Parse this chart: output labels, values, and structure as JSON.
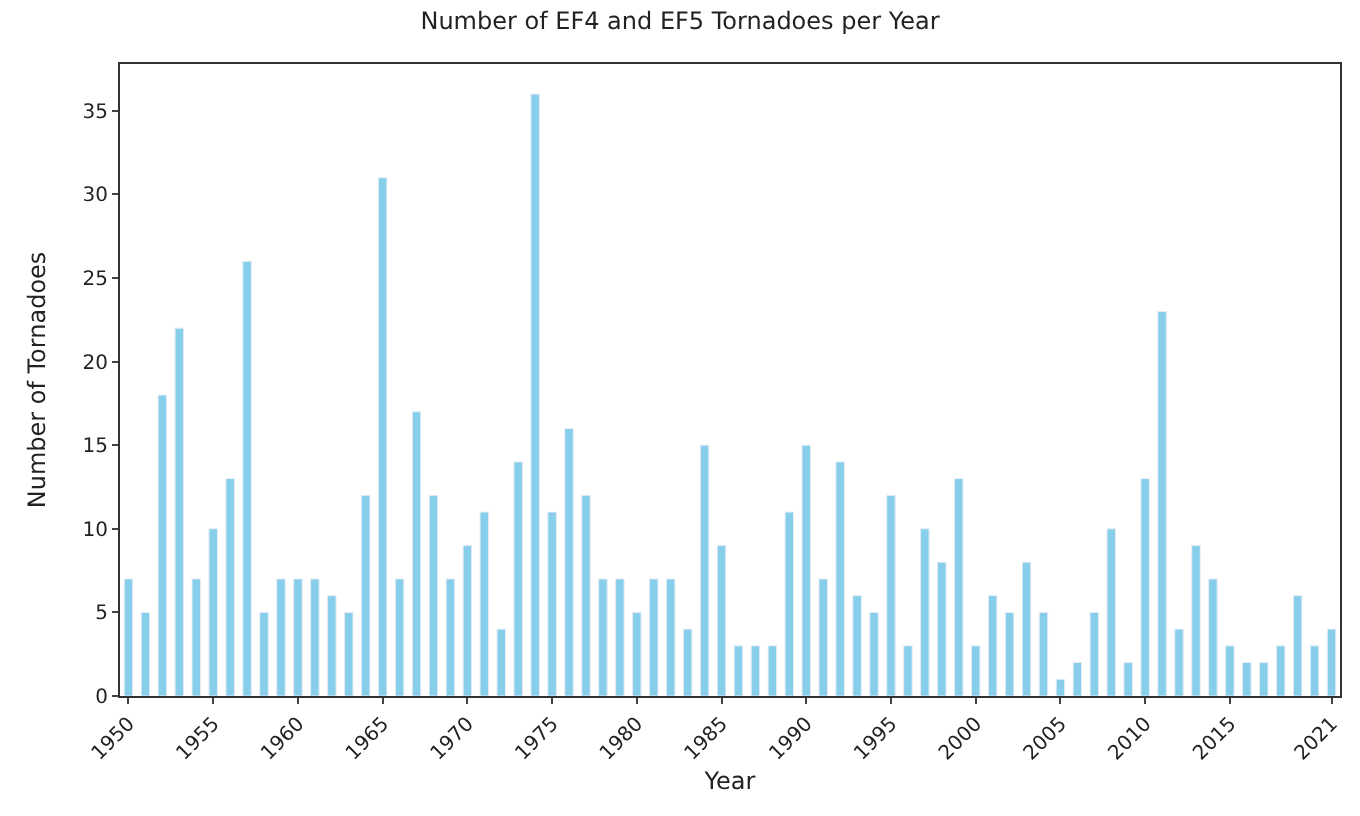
{
  "chart_data": {
    "type": "bar",
    "title": "Number of EF4 and EF5 Tornadoes per Year",
    "xlabel": "Year",
    "ylabel": "Number of Tornadoes",
    "categories": [
      "1950",
      null,
      null,
      null,
      null,
      "1955",
      null,
      null,
      null,
      null,
      "1960",
      null,
      null,
      null,
      null,
      "1965",
      null,
      null,
      null,
      null,
      "1970",
      null,
      null,
      null,
      null,
      "1975",
      null,
      null,
      null,
      null,
      "1980",
      null,
      null,
      null,
      null,
      "1985",
      null,
      null,
      null,
      null,
      "1990",
      null,
      null,
      null,
      null,
      "1995",
      null,
      null,
      null,
      null,
      "2000",
      null,
      null,
      null,
      null,
      "2005",
      null,
      null,
      null,
      null,
      "2010",
      null,
      null,
      null,
      null,
      "2015",
      null,
      null,
      null,
      null,
      null,
      "2021"
    ],
    "values": [
      7,
      5,
      18,
      22,
      7,
      10,
      13,
      26,
      5,
      7,
      7,
      7,
      6,
      5,
      12,
      31,
      7,
      17,
      12,
      7,
      9,
      11,
      4,
      14,
      36,
      11,
      16,
      12,
      7,
      7,
      5,
      7,
      7,
      4,
      15,
      9,
      3,
      3,
      3,
      11,
      15,
      7,
      14,
      6,
      5,
      12,
      3,
      10,
      8,
      13,
      3,
      6,
      5,
      8,
      5,
      1,
      2,
      5,
      10,
      2,
      13,
      23,
      4,
      9,
      7,
      3,
      2,
      2,
      3,
      6,
      3,
      4
    ],
    "color": "#87ceeb",
    "ylim": [
      0,
      37.8
    ],
    "yticks": [
      0,
      5,
      10,
      15,
      20,
      25,
      30,
      35
    ]
  }
}
